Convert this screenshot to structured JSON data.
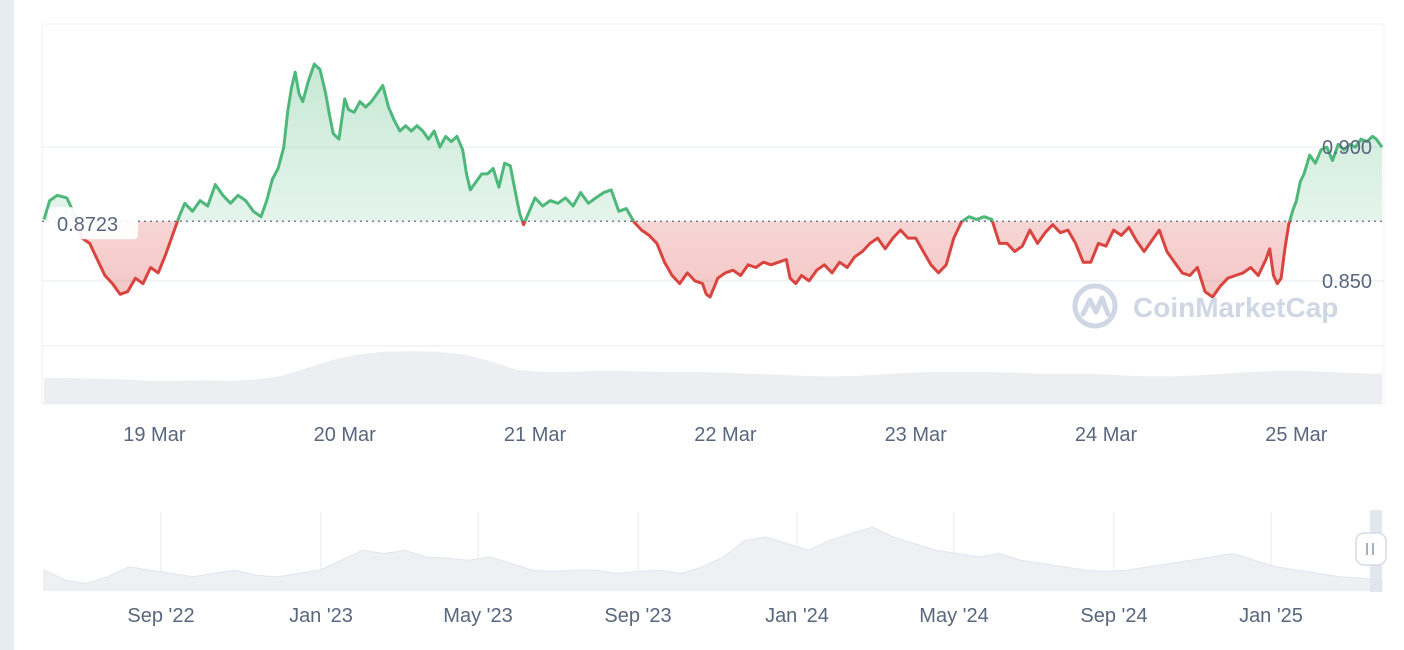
{
  "chart_data": {
    "type": "area",
    "baseline_value": 0.8723,
    "baseline_label": "0.8723",
    "y_ticks": [
      {
        "value": 0.9,
        "label": "0.900"
      },
      {
        "value": 0.85,
        "label": "0.850"
      }
    ],
    "ylim": [
      0.804,
      0.946
    ],
    "x_ticks": [
      "19 Mar",
      "20 Mar",
      "21 Mar",
      "22 Mar",
      "23 Mar",
      "24 Mar",
      "25 Mar"
    ],
    "xlim": [
      0,
      7.03
    ],
    "series": [
      {
        "points": [
          [
            0.0,
            0.873
          ],
          [
            0.03,
            0.88
          ],
          [
            0.07,
            0.882
          ],
          [
            0.12,
            0.881
          ],
          [
            0.16,
            0.875
          ],
          [
            0.2,
            0.866
          ],
          [
            0.24,
            0.864
          ],
          [
            0.28,
            0.858
          ],
          [
            0.32,
            0.852
          ],
          [
            0.36,
            0.849
          ],
          [
            0.4,
            0.845
          ],
          [
            0.44,
            0.846
          ],
          [
            0.48,
            0.851
          ],
          [
            0.52,
            0.849
          ],
          [
            0.56,
            0.855
          ],
          [
            0.6,
            0.853
          ],
          [
            0.64,
            0.86
          ],
          [
            0.68,
            0.868
          ],
          [
            0.71,
            0.874
          ],
          [
            0.74,
            0.879
          ],
          [
            0.78,
            0.876
          ],
          [
            0.82,
            0.88
          ],
          [
            0.86,
            0.878
          ],
          [
            0.9,
            0.886
          ],
          [
            0.94,
            0.882
          ],
          [
            0.98,
            0.879
          ],
          [
            1.02,
            0.882
          ],
          [
            1.06,
            0.88
          ],
          [
            1.1,
            0.876
          ],
          [
            1.14,
            0.874
          ],
          [
            1.17,
            0.88
          ],
          [
            1.2,
            0.888
          ],
          [
            1.23,
            0.892
          ],
          [
            1.26,
            0.9
          ],
          [
            1.28,
            0.913
          ],
          [
            1.3,
            0.922
          ],
          [
            1.32,
            0.928
          ],
          [
            1.34,
            0.92
          ],
          [
            1.36,
            0.917
          ],
          [
            1.39,
            0.925
          ],
          [
            1.42,
            0.931
          ],
          [
            1.45,
            0.929
          ],
          [
            1.48,
            0.92
          ],
          [
            1.5,
            0.912
          ],
          [
            1.52,
            0.905
          ],
          [
            1.55,
            0.903
          ],
          [
            1.58,
            0.918
          ],
          [
            1.6,
            0.914
          ],
          [
            1.63,
            0.913
          ],
          [
            1.66,
            0.917
          ],
          [
            1.69,
            0.915
          ],
          [
            1.72,
            0.917
          ],
          [
            1.75,
            0.92
          ],
          [
            1.78,
            0.923
          ],
          [
            1.81,
            0.915
          ],
          [
            1.84,
            0.91
          ],
          [
            1.87,
            0.906
          ],
          [
            1.9,
            0.908
          ],
          [
            1.93,
            0.906
          ],
          [
            1.96,
            0.908
          ],
          [
            1.99,
            0.906
          ],
          [
            2.02,
            0.903
          ],
          [
            2.05,
            0.906
          ],
          [
            2.08,
            0.9
          ],
          [
            2.11,
            0.904
          ],
          [
            2.14,
            0.902
          ],
          [
            2.17,
            0.904
          ],
          [
            2.2,
            0.899
          ],
          [
            2.22,
            0.89
          ],
          [
            2.24,
            0.884
          ],
          [
            2.27,
            0.887
          ],
          [
            2.3,
            0.89
          ],
          [
            2.33,
            0.89
          ],
          [
            2.36,
            0.892
          ],
          [
            2.39,
            0.885
          ],
          [
            2.42,
            0.894
          ],
          [
            2.45,
            0.893
          ],
          [
            2.48,
            0.882
          ],
          [
            2.5,
            0.875
          ],
          [
            2.52,
            0.871
          ],
          [
            2.55,
            0.876
          ],
          [
            2.58,
            0.881
          ],
          [
            2.62,
            0.878
          ],
          [
            2.66,
            0.88
          ],
          [
            2.7,
            0.879
          ],
          [
            2.74,
            0.881
          ],
          [
            2.78,
            0.878
          ],
          [
            2.82,
            0.883
          ],
          [
            2.86,
            0.879
          ],
          [
            2.9,
            0.881
          ],
          [
            2.94,
            0.883
          ],
          [
            2.98,
            0.884
          ],
          [
            3.02,
            0.876
          ],
          [
            3.06,
            0.877
          ],
          [
            3.1,
            0.872
          ],
          [
            3.14,
            0.869
          ],
          [
            3.18,
            0.867
          ],
          [
            3.22,
            0.864
          ],
          [
            3.26,
            0.857
          ],
          [
            3.3,
            0.852
          ],
          [
            3.34,
            0.849
          ],
          [
            3.38,
            0.853
          ],
          [
            3.42,
            0.85
          ],
          [
            3.46,
            0.849
          ],
          [
            3.48,
            0.845
          ],
          [
            3.5,
            0.844
          ],
          [
            3.54,
            0.851
          ],
          [
            3.58,
            0.853
          ],
          [
            3.62,
            0.854
          ],
          [
            3.66,
            0.852
          ],
          [
            3.7,
            0.856
          ],
          [
            3.74,
            0.855
          ],
          [
            3.78,
            0.857
          ],
          [
            3.82,
            0.856
          ],
          [
            3.86,
            0.857
          ],
          [
            3.9,
            0.858
          ],
          [
            3.92,
            0.851
          ],
          [
            3.95,
            0.849
          ],
          [
            3.98,
            0.852
          ],
          [
            4.02,
            0.85
          ],
          [
            4.06,
            0.854
          ],
          [
            4.1,
            0.856
          ],
          [
            4.14,
            0.853
          ],
          [
            4.18,
            0.857
          ],
          [
            4.22,
            0.855
          ],
          [
            4.26,
            0.859
          ],
          [
            4.3,
            0.861
          ],
          [
            4.34,
            0.864
          ],
          [
            4.38,
            0.866
          ],
          [
            4.42,
            0.862
          ],
          [
            4.46,
            0.866
          ],
          [
            4.5,
            0.869
          ],
          [
            4.54,
            0.866
          ],
          [
            4.58,
            0.866
          ],
          [
            4.62,
            0.861
          ],
          [
            4.66,
            0.856
          ],
          [
            4.7,
            0.853
          ],
          [
            4.74,
            0.856
          ],
          [
            4.78,
            0.866
          ],
          [
            4.82,
            0.872
          ],
          [
            4.86,
            0.874
          ],
          [
            4.9,
            0.873
          ],
          [
            4.94,
            0.874
          ],
          [
            4.98,
            0.873
          ],
          [
            5.02,
            0.864
          ],
          [
            5.06,
            0.864
          ],
          [
            5.1,
            0.861
          ],
          [
            5.14,
            0.863
          ],
          [
            5.18,
            0.869
          ],
          [
            5.22,
            0.864
          ],
          [
            5.26,
            0.868
          ],
          [
            5.3,
            0.871
          ],
          [
            5.34,
            0.868
          ],
          [
            5.38,
            0.869
          ],
          [
            5.42,
            0.864
          ],
          [
            5.46,
            0.857
          ],
          [
            5.5,
            0.857
          ],
          [
            5.54,
            0.864
          ],
          [
            5.58,
            0.863
          ],
          [
            5.62,
            0.869
          ],
          [
            5.66,
            0.867
          ],
          [
            5.7,
            0.87
          ],
          [
            5.74,
            0.865
          ],
          [
            5.78,
            0.861
          ],
          [
            5.82,
            0.865
          ],
          [
            5.86,
            0.869
          ],
          [
            5.9,
            0.861
          ],
          [
            5.94,
            0.857
          ],
          [
            5.98,
            0.853
          ],
          [
            6.02,
            0.852
          ],
          [
            6.06,
            0.855
          ],
          [
            6.1,
            0.846
          ],
          [
            6.14,
            0.844
          ],
          [
            6.18,
            0.848
          ],
          [
            6.22,
            0.851
          ],
          [
            6.26,
            0.852
          ],
          [
            6.3,
            0.853
          ],
          [
            6.34,
            0.855
          ],
          [
            6.38,
            0.852
          ],
          [
            6.42,
            0.858
          ],
          [
            6.44,
            0.862
          ],
          [
            6.46,
            0.852
          ],
          [
            6.48,
            0.849
          ],
          [
            6.5,
            0.851
          ],
          [
            6.52,
            0.862
          ],
          [
            6.54,
            0.871
          ],
          [
            6.56,
            0.876
          ],
          [
            6.58,
            0.88
          ],
          [
            6.6,
            0.887
          ],
          [
            6.62,
            0.89
          ],
          [
            6.65,
            0.897
          ],
          [
            6.68,
            0.894
          ],
          [
            6.71,
            0.899
          ],
          [
            6.74,
            0.9
          ],
          [
            6.77,
            0.895
          ],
          [
            6.8,
            0.901
          ],
          [
            6.83,
            0.899
          ],
          [
            6.86,
            0.901
          ],
          [
            6.89,
            0.9
          ],
          [
            6.92,
            0.903
          ],
          [
            6.95,
            0.902
          ],
          [
            6.98,
            0.904
          ],
          [
            7.0,
            0.903
          ],
          [
            7.03,
            0.9
          ]
        ]
      }
    ],
    "volume": [
      0.48,
      0.47,
      0.46,
      0.45,
      0.42,
      0.42,
      0.43,
      0.42,
      0.44,
      0.5,
      0.65,
      0.8,
      0.9,
      0.95,
      0.96,
      0.95,
      0.9,
      0.78,
      0.62,
      0.58,
      0.58,
      0.6,
      0.6,
      0.59,
      0.58,
      0.58,
      0.57,
      0.55,
      0.53,
      0.51,
      0.5,
      0.51,
      0.54,
      0.57,
      0.58,
      0.58,
      0.58,
      0.57,
      0.55,
      0.55,
      0.55,
      0.52,
      0.5,
      0.5,
      0.52,
      0.55,
      0.58,
      0.6,
      0.6,
      0.58,
      0.56,
      0.55
    ],
    "navigator": {
      "x_ticks": [
        "Sep '22",
        "Jan '23",
        "May '23",
        "Sep '23",
        "Jan '24",
        "May '24",
        "Sep '24",
        "Jan '25"
      ],
      "values": [
        0.3,
        0.15,
        0.1,
        0.2,
        0.35,
        0.3,
        0.25,
        0.2,
        0.25,
        0.3,
        0.22,
        0.2,
        0.25,
        0.3,
        0.45,
        0.6,
        0.55,
        0.6,
        0.5,
        0.48,
        0.45,
        0.5,
        0.4,
        0.3,
        0.28,
        0.3,
        0.3,
        0.25,
        0.28,
        0.3,
        0.25,
        0.35,
        0.5,
        0.75,
        0.8,
        0.7,
        0.6,
        0.75,
        0.85,
        0.95,
        0.8,
        0.7,
        0.6,
        0.55,
        0.5,
        0.55,
        0.45,
        0.4,
        0.35,
        0.3,
        0.28,
        0.3,
        0.35,
        0.4,
        0.45,
        0.5,
        0.55,
        0.45,
        0.35,
        0.3,
        0.25,
        0.2,
        0.18,
        0.15
      ]
    }
  },
  "watermark": {
    "text": "CoinMarketCap",
    "icon": "coinmarketcap-logo"
  },
  "navigator_handle": {
    "icon": "drag-handle-icon"
  },
  "colors": {
    "up": "#16c784",
    "up_line": "#4db87a",
    "down_line": "#d9443f",
    "grid": "#eff2f5",
    "text": "#58667e",
    "volume": "#edeef2"
  }
}
